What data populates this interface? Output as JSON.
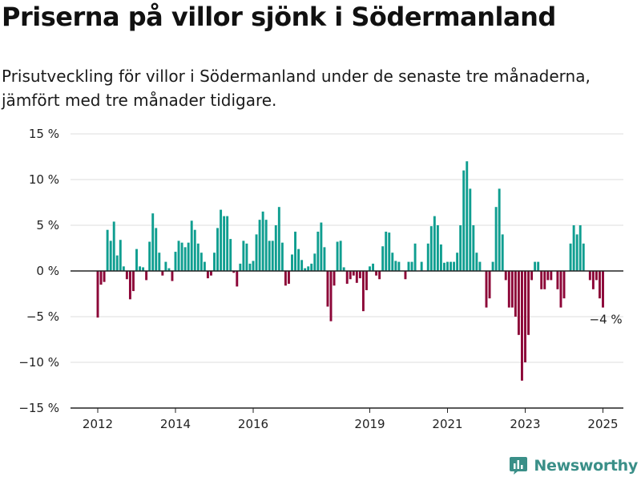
{
  "title": "Priserna på villor sjönk i Södermanland",
  "subtitle": "Prisutveckling för villor i Södermanland under de senaste tre månaderna, jämfört med tre månader tidigare.",
  "brand": "Newsworthy",
  "colors": {
    "positive": "#0f9e90",
    "negative": "#8c0537",
    "grid": "#dddddd",
    "axis": "#222222",
    "brand": "#3a8f88"
  },
  "chart_data": {
    "type": "bar",
    "ylim": [
      -15,
      15
    ],
    "yticks": [
      15,
      10,
      5,
      0,
      -5,
      -10,
      -15
    ],
    "ytick_labels": [
      "15 %",
      "10 %",
      "5 %",
      "0 %",
      "−5 %",
      "−10 %",
      "−15 %"
    ],
    "xticks": [
      2012,
      2014,
      2016,
      2019,
      2021,
      2023,
      2025
    ],
    "x_start": "2012-01",
    "annotation": {
      "text": "−4 %",
      "x": "2025-02",
      "y": -4
    },
    "values": [
      -5.1,
      -1.5,
      -1.2,
      4.5,
      3.3,
      5.4,
      1.7,
      3.4,
      0.5,
      -0.9,
      -3.1,
      -2.2,
      2.4,
      0.5,
      0.4,
      -1.0,
      3.2,
      6.3,
      4.7,
      2.0,
      -0.5,
      1.0,
      0.3,
      -1.1,
      2.1,
      3.3,
      3.1,
      2.6,
      3.1,
      5.5,
      4.5,
      3.0,
      2.0,
      1.0,
      -0.8,
      -0.5,
      2.0,
      4.7,
      6.7,
      6.0,
      6.0,
      3.5,
      -0.2,
      -1.7,
      0.8,
      3.3,
      3.0,
      0.8,
      1.1,
      4.0,
      5.6,
      6.5,
      5.6,
      3.3,
      3.3,
      5.0,
      7.0,
      3.1,
      -1.6,
      -1.4,
      1.8,
      4.3,
      2.4,
      1.2,
      0.3,
      0.5,
      0.8,
      1.9,
      4.3,
      5.3,
      2.6,
      -3.9,
      -5.5,
      -1.6,
      3.2,
      3.3,
      0.4,
      -1.4,
      -0.9,
      -0.5,
      -1.3,
      -0.8,
      -4.4,
      -2.1,
      0.5,
      0.8,
      -0.5,
      -0.9,
      2.7,
      4.3,
      4.2,
      2.0,
      1.1,
      1.0,
      0.0,
      -0.9,
      1.0,
      1.0,
      3.0,
      0.0,
      1.0,
      0.0,
      3.0,
      4.9,
      6.0,
      5.0,
      2.9,
      0.9,
      1.0,
      1.0,
      1.0,
      2.0,
      5.0,
      11.0,
      12.0,
      9.0,
      5.0,
      2.0,
      1.0,
      0.0,
      -4.0,
      -3.0,
      1.0,
      7.0,
      9.0,
      4.0,
      -1.0,
      -4.0,
      -4.0,
      -5.0,
      -7.0,
      -12.0,
      -10.0,
      -7.0,
      -1.0,
      1.0,
      1.0,
      -2.0,
      -2.0,
      -1.0,
      -1.0,
      0.0,
      -2.0,
      -4.0,
      -3.0,
      0.0,
      3.0,
      5.0,
      4.0,
      5.0,
      3.0,
      0.0,
      -1.0,
      -2.0,
      -1.0,
      -3.0,
      -4.0
    ]
  }
}
